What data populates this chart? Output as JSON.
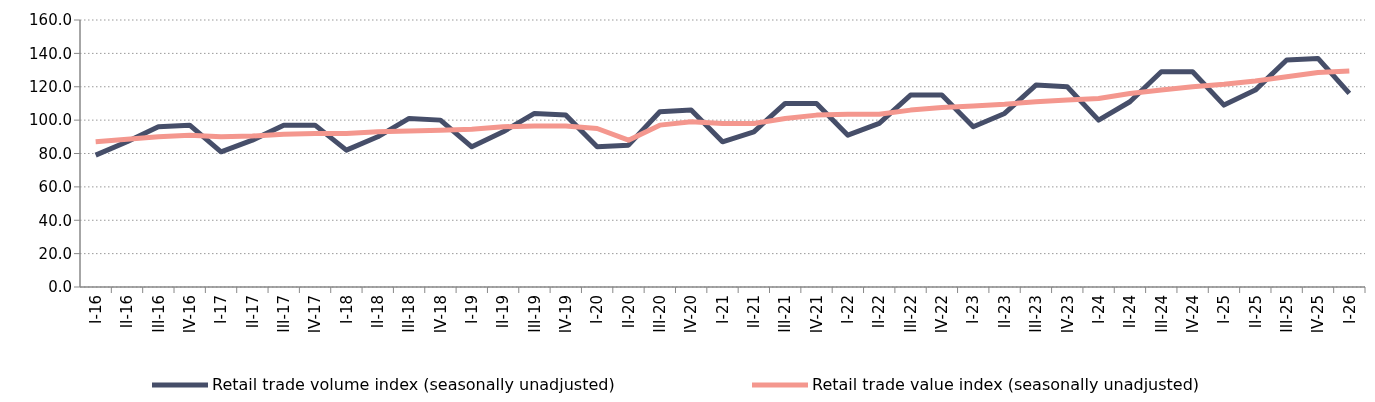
{
  "chart_data": {
    "type": "line",
    "categories": [
      "I-16",
      "II-16",
      "III-16",
      "IV-16",
      "I-17",
      "II-17",
      "III-17",
      "IV-17",
      "I-18",
      "II-18",
      "III-18",
      "IV-18",
      "I-19",
      "II-19",
      "III-19",
      "IV-19",
      "I-20",
      "II-20",
      "III-20",
      "IV-20",
      "I-21",
      "II-21",
      "III-21",
      "IV-21",
      "I-22",
      "II-22",
      "III-22",
      "IV-22",
      "I-23",
      "II-23",
      "III-23",
      "IV-23",
      "I-24",
      "II-24",
      "III-24",
      "IV-24",
      "I-25",
      "II-25",
      "III-25",
      "IV-25",
      "I-26"
    ],
    "series": [
      {
        "name": "Retail trade volume index (seasonally unadjusted)",
        "color": "#464e69",
        "values": [
          79,
          87,
          96,
          97,
          81,
          88,
          97,
          97,
          82,
          90,
          101,
          100,
          84,
          93,
          104,
          103,
          84,
          85,
          105,
          106,
          87,
          93,
          110,
          110,
          91,
          98,
          115,
          115,
          96,
          104,
          121,
          120,
          100,
          111,
          129,
          129,
          109,
          118,
          136,
          137,
          116
        ]
      },
      {
        "name": "Retail trade value index (seasonally unadjusted)",
        "color": "#f4978e",
        "values": [
          87,
          88.5,
          90,
          91,
          90,
          90.5,
          91.5,
          92,
          92,
          93,
          93.5,
          94,
          94.5,
          96,
          96.5,
          96.5,
          95,
          88,
          97,
          99,
          98,
          98,
          101,
          103,
          103.5,
          103.5,
          106,
          107.5,
          108.5,
          109.5,
          111,
          112,
          113,
          116,
          118,
          120,
          121.5,
          123.5,
          126,
          128.5,
          129.5
        ]
      }
    ],
    "ylim": [
      0,
      160
    ],
    "yticks": [
      {
        "value": 0,
        "label": "0.0"
      },
      {
        "value": 20,
        "label": "20.0"
      },
      {
        "value": 40,
        "label": "40.0"
      },
      {
        "value": 60,
        "label": "60.0"
      },
      {
        "value": 80,
        "label": "80.0"
      },
      {
        "value": 100,
        "label": "100.0"
      },
      {
        "value": 120,
        "label": "120.0"
      },
      {
        "value": 140,
        "label": "140.0"
      },
      {
        "value": 160,
        "label": "160.0"
      }
    ],
    "grid": "y",
    "legend": "bottom",
    "marker": "none",
    "line_style": "solid"
  }
}
